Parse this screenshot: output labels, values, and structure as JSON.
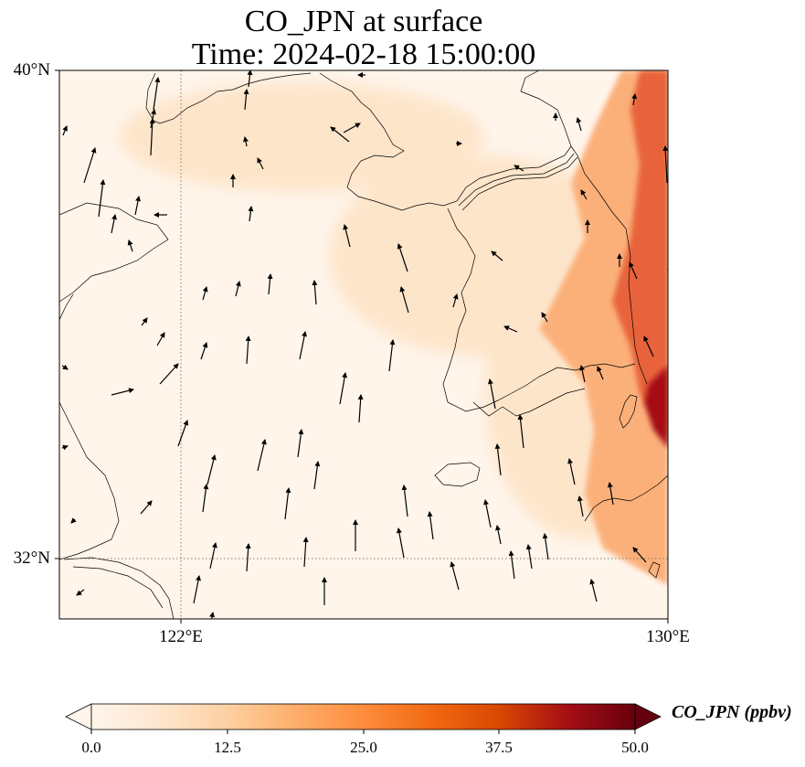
{
  "title": {
    "line1": "CO_JPN at surface",
    "line2": "Time: 2024-02-18 15:00:00"
  },
  "map": {
    "lat_labels": [
      "40°N",
      "32°N"
    ],
    "lon_labels": [
      "122°E",
      "130°E"
    ],
    "lon_range": [
      120,
      130
    ],
    "lat_range": [
      31,
      40
    ],
    "gridlines": {
      "lons": [
        122
      ],
      "lats": [
        32
      ],
      "style": "dotted"
    },
    "field_colors": {
      "background": "#fff5eb",
      "plume_light": "#fde0bf",
      "plume_mid": "#fbb07a",
      "plume_high": "#e8643a",
      "plume_peak": "#a50f15"
    }
  },
  "colorbar": {
    "label": "CO_JPN (ppbv)",
    "ticks": [
      "0.0",
      "12.5",
      "25.0",
      "37.5",
      "50.0"
    ],
    "vmin": 0,
    "vmax": 50,
    "colors": [
      "#fff5eb",
      "#fee6ce",
      "#fdd0a2",
      "#fdae6b",
      "#fd8d3c",
      "#f16913",
      "#d94801",
      "#a50f15",
      "#67000d"
    ],
    "extend": "both"
  },
  "wind_vectors": [
    [
      168,
      120,
      5,
      -35
    ],
    [
      92,
      200,
      12,
      -38
    ],
    [
      108,
      237,
      5,
      -40
    ],
    [
      165,
      170,
      2,
      -40
    ],
    [
      272,
      95,
      2,
      -18
    ],
    [
      268,
      120,
      2,
      -22
    ],
    [
      122,
      255,
      4,
      -20
    ],
    [
      145,
      275,
      -4,
      -12
    ],
    [
      183,
      235,
      -14,
      0
    ],
    [
      382,
      155,
      -20,
      -16
    ],
    [
      376,
      145,
      18,
      -10
    ],
    [
      270,
      160,
      -2,
      -10
    ],
    [
      288,
      185,
      -6,
      -12
    ],
    [
      255,
      205,
      0,
      -14
    ],
    [
      273,
      242,
      2,
      -16
    ],
    [
      383,
      270,
      -6,
      -24
    ],
    [
      446,
      297,
      -10,
      -30
    ],
    [
      222,
      328,
      4,
      -14
    ],
    [
      258,
      324,
      4,
      -16
    ],
    [
      294,
      322,
      2,
      -22
    ],
    [
      346,
      333,
      -2,
      -26
    ],
    [
      447,
      342,
      -8,
      -28
    ],
    [
      496,
      336,
      4,
      -14
    ],
    [
      550,
      285,
      -12,
      -10
    ],
    [
      155,
      356,
      6,
      -8
    ],
    [
      172,
      378,
      8,
      -14
    ],
    [
      175,
      420,
      20,
      -22
    ],
    [
      122,
      432,
      24,
      -6
    ],
    [
      220,
      393,
      6,
      -18
    ],
    [
      270,
      398,
      2,
      -30
    ],
    [
      328,
      393,
      6,
      -30
    ],
    [
      372,
      442,
      6,
      -34
    ],
    [
      393,
      462,
      2,
      -30
    ],
    [
      426,
      406,
      4,
      -34
    ],
    [
      542,
      447,
      -6,
      -32
    ],
    [
      573,
      490,
      -4,
      -36
    ],
    [
      195,
      488,
      10,
      -28
    ],
    [
      227,
      530,
      8,
      -32
    ],
    [
      222,
      560,
      4,
      -30
    ],
    [
      282,
      515,
      8,
      -34
    ],
    [
      326,
      500,
      4,
      -30
    ],
    [
      344,
      535,
      4,
      -30
    ],
    [
      312,
      568,
      4,
      -34
    ],
    [
      154,
      562,
      12,
      -14
    ],
    [
      548,
      520,
      -4,
      -34
    ],
    [
      446,
      565,
      -4,
      -34
    ],
    [
      474,
      590,
      -4,
      -30
    ],
    [
      537,
      577,
      -6,
      -30
    ],
    [
      389,
      603,
      0,
      -34
    ],
    [
      442,
      610,
      -6,
      -32
    ],
    [
      502,
      645,
      -8,
      -30
    ],
    [
      548,
      595,
      -4,
      -20
    ],
    [
      563,
      633,
      -4,
      -30
    ],
    [
      582,
      622,
      -4,
      -26
    ],
    [
      600,
      612,
      -4,
      -28
    ],
    [
      270,
      625,
      2,
      -30
    ],
    [
      230,
      622,
      6,
      -28
    ],
    [
      333,
      620,
      2,
      -32
    ],
    [
      355,
      662,
      0,
      -30
    ],
    [
      212,
      660,
      6,
      -30
    ],
    [
      653,
      658,
      -6,
      -24
    ],
    [
      638,
      565,
      -4,
      -22
    ],
    [
      671,
      552,
      -4,
      -24
    ],
    [
      629,
      530,
      -6,
      -28
    ],
    [
      707,
      615,
      -14,
      -16
    ],
    [
      636,
      143,
      -4,
      -14
    ],
    [
      608,
      132,
      0,
      -8
    ],
    [
      693,
      115,
      2,
      -12
    ],
    [
      730,
      200,
      -2,
      -40
    ],
    [
      697,
      305,
      -8,
      -18
    ],
    [
      738,
      320,
      -6,
      -30
    ],
    [
      715,
      390,
      -10,
      -22
    ],
    [
      660,
      415,
      -6,
      -14
    ],
    [
      640,
      418,
      -4,
      -18
    ],
    [
      566,
      363,
      -14,
      -6
    ],
    [
      643,
      255,
      0,
      -14
    ],
    [
      678,
      292,
      0,
      -14
    ],
    [
      599,
      352,
      -6,
      -10
    ],
    [
      642,
      218,
      -6,
      -10
    ],
    [
      573,
      187,
      -10,
      -6
    ],
    [
      499,
      157,
      6,
      0
    ],
    [
      400,
      82,
      -8,
      0
    ],
    [
      148,
      235,
      4,
      -20
    ],
    [
      165,
      140,
      4,
      -20
    ],
    [
      69,
      148,
      4,
      -10
    ],
    [
      68,
      400,
      6,
      4
    ],
    [
      68,
      490,
      6,
      -2
    ],
    [
      82,
      568,
      -4,
      4
    ],
    [
      92,
      645,
      -8,
      6
    ],
    [
      231,
      680,
      2,
      -10
    ]
  ]
}
